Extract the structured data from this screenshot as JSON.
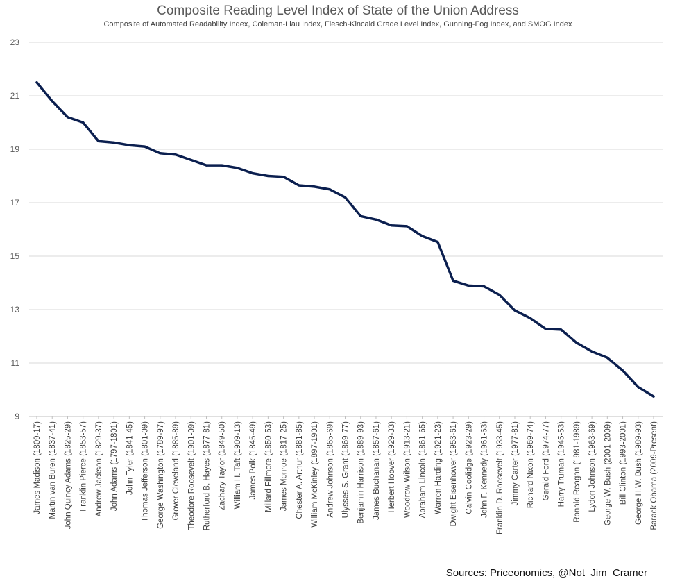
{
  "chart_data": {
    "type": "line",
    "title": "Composite Reading Level Index of State of the Union Address",
    "subtitle": "Composite of Automated Readability Index, Coleman-Liau Index, Flesch-Kincaid Grade Level Index, Gunning-Fog Index, and SMOG Index",
    "xlabel": "",
    "ylabel": "",
    "ylim": [
      9,
      23
    ],
    "yticks": [
      9,
      11,
      13,
      15,
      17,
      19,
      21,
      23
    ],
    "grid": true,
    "series_color": "#0b1f4f",
    "categories": [
      "James Madison (1809-17)",
      "Martin van Buren (1837-41)",
      "John Quincy Adams (1825-29)",
      "Franklin Pierce (1853-57)",
      "Andrew Jackson (1829-37)",
      "John Adams (1797-1801)",
      "John Tyler (1841-45)",
      "Thomas Jefferson (1801-09)",
      "George Washington (1789-97)",
      "Grover Cleveland (1885-89)",
      "Theodore Roosevelt (1901-09)",
      "Rutherford B. Hayes (1877-81)",
      "Zachary Taylor (1849-50)",
      "William H. Taft (1909-13)",
      "James Polk (1845-49)",
      "Millard Fillmore (1850-53)",
      "James Monroe (1817-25)",
      "Chester A. Arthur (1881-85)",
      "William McKinley (1897-1901)",
      "Andrew Johnson (1865-69)",
      "Ulysses S. Grant (1869-77)",
      "Benjamin Harrison (1889-93)",
      "James Buchanan (1857-61)",
      "Herbert Hoover (1929-33)",
      "Woodrow Wilson (1913-21)",
      "Abraham Lincoln (1861-65)",
      "Warren Harding (1921-23)",
      "Dwight Eisenhower (1953-61)",
      "Calvin Coolidge (1923-29)",
      "John F. Kennedy (1961-63)",
      "Franklin D. Roosevelt (1933-45)",
      "Jimmy Carter (1977-81)",
      "Richard Nixon (1969-74)",
      "Gerald Ford (1974-77)",
      "Harry Truman (1945-53)",
      "Ronald Reagan (1981-1989)",
      "Lydon Johnson (1963-69)",
      "George W. Bush (2001-2009)",
      "Bill Clinton (1993-2001)",
      "George H.W. Bush (1989-93)",
      "Barack Obama (2009-Present)"
    ],
    "series": [
      {
        "name": "Composite Reading Level",
        "values": [
          21.5,
          20.8,
          20.2,
          20.0,
          19.3,
          19.25,
          19.15,
          19.1,
          18.85,
          18.8,
          18.6,
          18.4,
          18.4,
          18.3,
          18.1,
          18.0,
          17.97,
          17.65,
          17.6,
          17.5,
          17.2,
          16.5,
          16.37,
          16.15,
          16.12,
          15.75,
          15.53,
          14.08,
          13.9,
          13.87,
          13.55,
          12.97,
          12.68,
          12.28,
          12.25,
          11.76,
          11.43,
          11.2,
          10.72,
          10.1,
          9.75
        ]
      }
    ]
  },
  "source_text": "Sources: Priceonomics, @Not_Jim_Cramer"
}
